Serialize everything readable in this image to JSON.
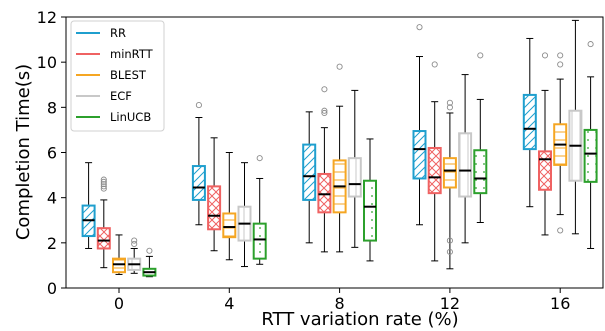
{
  "chart_data": {
    "type": "box",
    "xlabel": "RTT variation rate (%)",
    "ylabel": "Completion Time(s)",
    "ylim": [
      0,
      12
    ],
    "yticks": [
      0,
      2,
      4,
      6,
      8,
      10,
      12
    ],
    "categories": [
      "0",
      "4",
      "8",
      "12",
      "16"
    ],
    "legend_position": "top-left",
    "series": [
      {
        "name": "RR",
        "color": "#1f9fce",
        "hatch": "diagonal",
        "boxes": [
          {
            "whislo": 1.75,
            "q1": 2.3,
            "med": 3.0,
            "q3": 3.65,
            "whishi": 5.55,
            "fliers": []
          },
          {
            "whislo": 2.8,
            "q1": 3.9,
            "med": 4.45,
            "q3": 5.4,
            "whishi": 7.55,
            "fliers": [
              8.1
            ]
          },
          {
            "whislo": 2.0,
            "q1": 3.9,
            "med": 4.95,
            "q3": 6.35,
            "whishi": 7.8,
            "fliers": []
          },
          {
            "whislo": 2.8,
            "q1": 4.85,
            "med": 6.15,
            "q3": 6.95,
            "whishi": 10.25,
            "fliers": [
              11.55
            ]
          },
          {
            "whislo": 3.6,
            "q1": 6.15,
            "med": 7.05,
            "q3": 8.55,
            "whishi": 11.05,
            "fliers": []
          }
        ]
      },
      {
        "name": "minRTT",
        "color": "#ef6262",
        "hatch": "cross",
        "boxes": [
          {
            "whislo": 0.9,
            "q1": 1.75,
            "med": 2.1,
            "q3": 2.65,
            "whishi": 3.9,
            "fliers": [
              4.4,
              4.5,
              4.6,
              4.7,
              4.8
            ]
          },
          {
            "whislo": 1.65,
            "q1": 2.6,
            "med": 3.2,
            "q3": 4.5,
            "whishi": 6.65,
            "fliers": []
          },
          {
            "whislo": 1.6,
            "q1": 3.35,
            "med": 4.15,
            "q3": 5.05,
            "whishi": 7.1,
            "fliers": [
              7.75,
              7.85,
              8.8
            ]
          },
          {
            "whislo": 1.2,
            "q1": 4.2,
            "med": 4.9,
            "q3": 6.2,
            "whishi": 8.25,
            "fliers": [
              9.9
            ]
          },
          {
            "whislo": 2.35,
            "q1": 4.35,
            "med": 5.7,
            "q3": 6.05,
            "whishi": 8.75,
            "fliers": [
              10.3
            ]
          }
        ]
      },
      {
        "name": "BLEST",
        "color": "#f5a623",
        "hatch": "horizontal",
        "boxes": [
          {
            "whislo": 0.6,
            "q1": 0.7,
            "med": 1.05,
            "q3": 1.3,
            "whishi": 2.35,
            "fliers": []
          },
          {
            "whislo": 1.25,
            "q1": 2.25,
            "med": 2.7,
            "q3": 3.3,
            "whishi": 6.0,
            "fliers": []
          },
          {
            "whislo": 1.6,
            "q1": 3.35,
            "med": 4.5,
            "q3": 5.65,
            "whishi": 8.05,
            "fliers": [
              9.8
            ]
          },
          {
            "whislo": 0.85,
            "q1": 4.45,
            "med": 5.2,
            "q3": 5.75,
            "whishi": 7.75,
            "fliers": [
              1.6,
              2.1,
              8.0,
              8.2
            ]
          },
          {
            "whislo": 3.25,
            "q1": 5.45,
            "med": 6.35,
            "q3": 7.25,
            "whishi": 9.25,
            "fliers": [
              2.55,
              9.9,
              10.3
            ]
          }
        ]
      },
      {
        "name": "ECF",
        "color": "#c8c8c8",
        "hatch": "vertical",
        "boxes": [
          {
            "whislo": 0.65,
            "q1": 0.8,
            "med": 1.05,
            "q3": 1.3,
            "whishi": 1.75,
            "fliers": [
              1.95,
              2.1
            ]
          },
          {
            "whislo": 0.95,
            "q1": 2.1,
            "med": 2.85,
            "q3": 3.6,
            "whishi": 5.55,
            "fliers": []
          },
          {
            "whislo": 1.8,
            "q1": 4.05,
            "med": 4.6,
            "q3": 5.75,
            "whishi": 8.75,
            "fliers": []
          },
          {
            "whislo": 2.0,
            "q1": 4.05,
            "med": 5.2,
            "q3": 6.85,
            "whishi": 9.45,
            "fliers": []
          },
          {
            "whislo": 2.4,
            "q1": 4.75,
            "med": 6.3,
            "q3": 7.85,
            "whishi": 11.85,
            "fliers": []
          }
        ]
      },
      {
        "name": "LinUCB",
        "color": "#2ca02c",
        "hatch": "dots",
        "boxes": [
          {
            "whislo": 0.5,
            "q1": 0.55,
            "med": 0.7,
            "q3": 0.85,
            "whishi": 1.4,
            "fliers": [
              1.65
            ]
          },
          {
            "whislo": 1.05,
            "q1": 1.3,
            "med": 2.15,
            "q3": 2.85,
            "whishi": 4.85,
            "fliers": [
              5.75
            ]
          },
          {
            "whislo": 1.2,
            "q1": 2.1,
            "med": 3.6,
            "q3": 4.75,
            "whishi": 6.6,
            "fliers": []
          },
          {
            "whislo": 2.9,
            "q1": 4.2,
            "med": 4.85,
            "q3": 6.1,
            "whishi": 8.35,
            "fliers": [
              10.3
            ]
          },
          {
            "whislo": 1.75,
            "q1": 4.7,
            "med": 5.95,
            "q3": 7.0,
            "whishi": 9.35,
            "fliers": [
              10.8
            ]
          }
        ]
      }
    ]
  }
}
